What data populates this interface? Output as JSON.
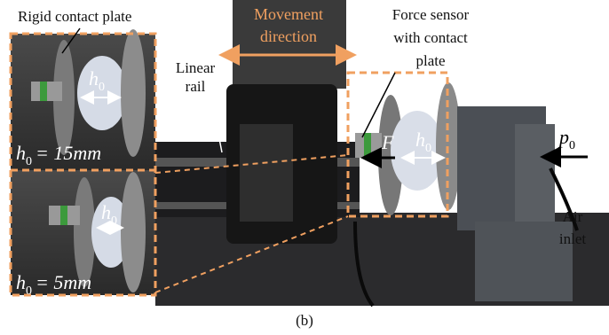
{
  "labels": {
    "rigid_contact_plate": "Rigid contact plate",
    "movement_direction": [
      "Movement",
      "direction"
    ],
    "linear_rail": [
      "Linear",
      "rail"
    ],
    "force_sensor": [
      "Force sensor",
      "with contact",
      "plate"
    ],
    "air_inlet": [
      "Air",
      "inlet"
    ]
  },
  "insets": [
    {
      "gap": {
        "base": "h",
        "sub": "0"
      },
      "caption": {
        "base": "h",
        "sub": "0",
        "rest": "= 15mm"
      }
    },
    {
      "gap": {
        "base": "h",
        "sub": "0"
      },
      "caption": {
        "base": "h",
        "sub": "0",
        "rest": "= 5mm"
      }
    }
  ],
  "main_photo": {
    "force": "F",
    "gap": {
      "base": "h",
      "sub": "0"
    },
    "pressure": {
      "base": "p",
      "sub": "0"
    }
  },
  "caption": "(b)"
}
